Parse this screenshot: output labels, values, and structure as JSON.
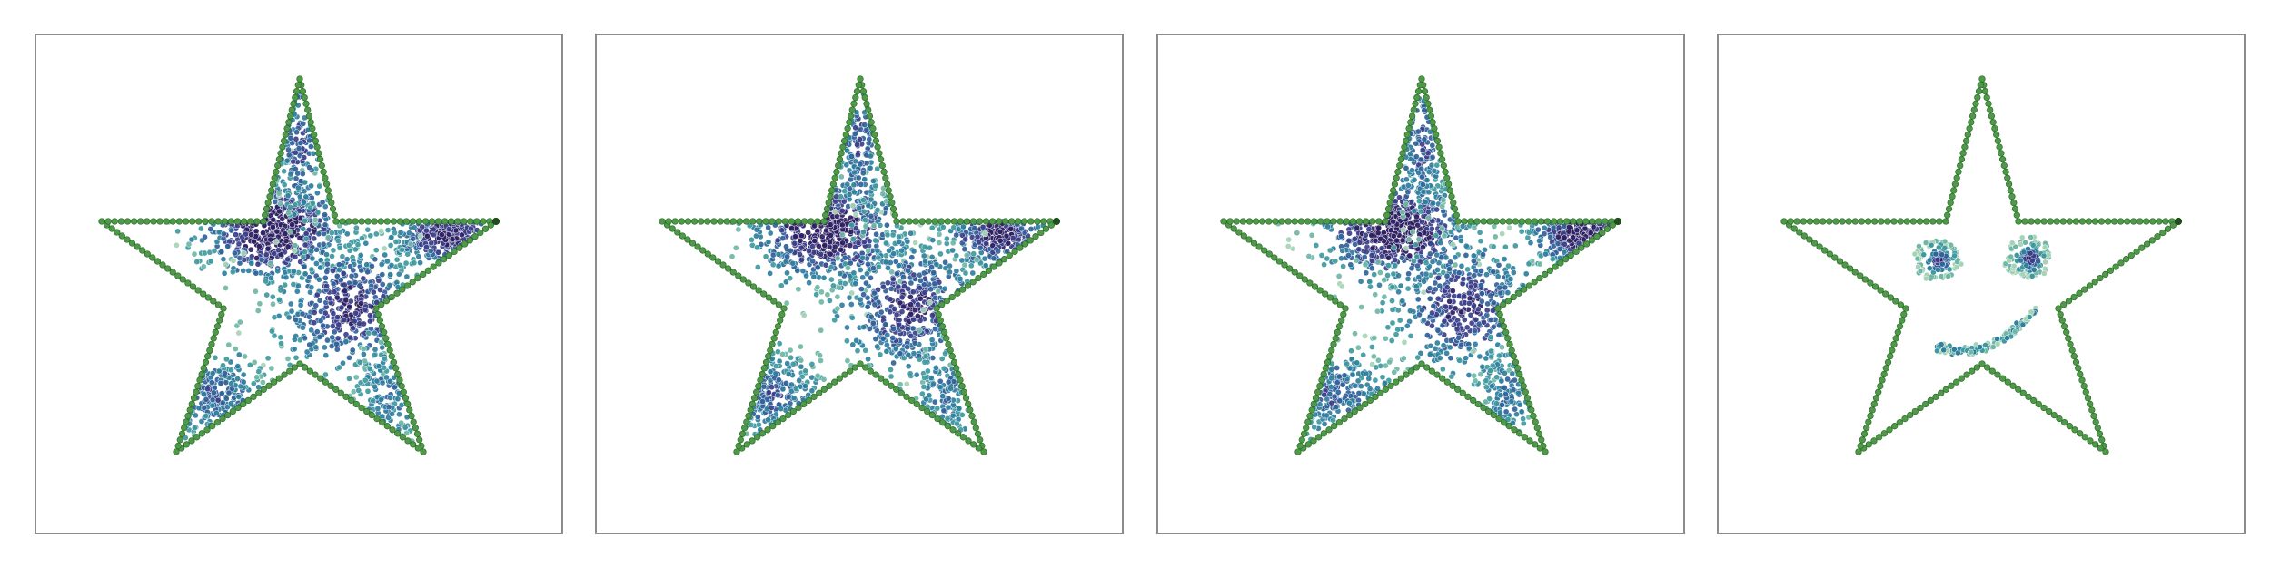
{
  "figure": {
    "panel_count": 4,
    "panels": [
      {
        "name": "panel-1",
        "content": "scattered-points",
        "scatter_seed": 11
      },
      {
        "name": "panel-2",
        "content": "scattered-points",
        "scatter_seed": 23
      },
      {
        "name": "panel-3",
        "content": "scattered-points",
        "scatter_seed": 37
      },
      {
        "name": "panel-4",
        "content": "smiley-face"
      }
    ]
  },
  "colors": {
    "star_outline": "#4e9a48",
    "star_outline_stroke": "#2f6b2c",
    "star_tip_marker": "#1f4d1c",
    "point_palette": [
      "#2c1f63",
      "#3b3f8a",
      "#31629a",
      "#2f7f9e",
      "#3f9a9f",
      "#6fb7a6",
      "#a6d3b6"
    ],
    "panel_border": "#8c8c8c",
    "background": "#ffffff"
  }
}
